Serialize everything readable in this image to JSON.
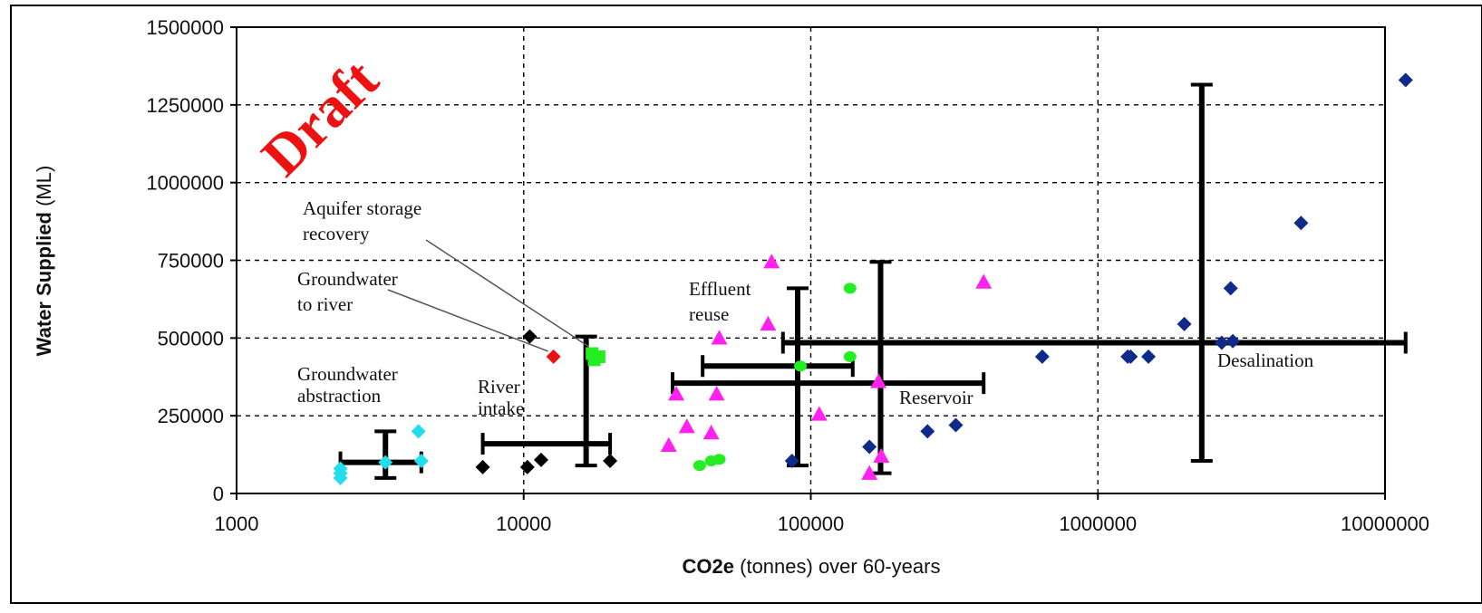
{
  "chart_data": {
    "type": "scatter",
    "title": "",
    "xlabel_bold": "CO2e",
    "xlabel_rest": " (tonnes) over 60-years",
    "ylabel_bold": "Water Supplied",
    "ylabel_rest": " (ML)",
    "x_scale": "log",
    "xlim": [
      1000,
      10000000
    ],
    "ylim": [
      0,
      1500000
    ],
    "x_ticks": [
      1000,
      10000,
      100000,
      1000000,
      10000000
    ],
    "x_tick_labels": [
      "1000",
      "10000",
      "100000",
      "1000000",
      "10000000"
    ],
    "y_ticks": [
      0,
      250000,
      500000,
      750000,
      1000000,
      1250000,
      1500000
    ],
    "y_tick_labels": [
      "0",
      "250000",
      "500000",
      "750000",
      "1000000",
      "1250000",
      "1500000"
    ],
    "grid": "dashed",
    "watermark": "Draft",
    "annotations": [
      {
        "text_lines": [
          "Groundwater",
          "abstraction"
        ]
      },
      {
        "text_lines": [
          "River",
          "intake"
        ]
      },
      {
        "text_lines": [
          "Groundwater",
          "to river"
        ]
      },
      {
        "text_lines": [
          "Aquifer storage",
          "recovery"
        ]
      },
      {
        "text_lines": [
          "Effluent",
          "reuse"
        ]
      },
      {
        "text_lines": [
          "Reservoir"
        ]
      },
      {
        "text_lines": [
          "Desalination"
        ]
      }
    ],
    "series": [
      {
        "key": "groundwater-abstraction",
        "marker": "diamond",
        "color": "#22ddee",
        "points": [
          [
            2300,
            50000
          ],
          [
            2300,
            65000
          ],
          [
            2300,
            80000
          ],
          [
            3300,
            100000
          ],
          [
            4300,
            200000
          ],
          [
            4400,
            105000
          ]
        ]
      },
      {
        "key": "river-intake",
        "marker": "diamond",
        "color": "#000000",
        "points": [
          [
            7200,
            85000
          ],
          [
            10300,
            85000
          ],
          [
            11500,
            108000
          ],
          [
            20000,
            105000
          ],
          [
            10500,
            505000
          ]
        ]
      },
      {
        "key": "groundwater-to-river",
        "marker": "diamond",
        "color": "#ee1111",
        "points": [
          [
            12700,
            440000
          ]
        ]
      },
      {
        "key": "aquifer-storage-recovery",
        "marker": "square",
        "color": "#22ee22",
        "points": [
          [
            17300,
            450000
          ],
          [
            18300,
            440000
          ],
          [
            17600,
            430000
          ]
        ]
      },
      {
        "key": "effluent-reuse",
        "marker": "circle",
        "color": "#22ee22",
        "points": [
          [
            41000,
            90000
          ],
          [
            45000,
            105000
          ],
          [
            48000,
            110000
          ],
          [
            92000,
            410000
          ],
          [
            137000,
            660000
          ],
          [
            137000,
            440000
          ]
        ]
      },
      {
        "key": "reservoir",
        "marker": "triangle",
        "color": "#ff22ee",
        "points": [
          [
            32000,
            155000
          ],
          [
            34000,
            320000
          ],
          [
            37000,
            215000
          ],
          [
            45000,
            195000
          ],
          [
            47000,
            320000
          ],
          [
            48000,
            500000
          ],
          [
            71000,
            545000
          ],
          [
            73000,
            745000
          ],
          [
            107000,
            255000
          ],
          [
            160000,
            65000
          ],
          [
            172000,
            360000
          ],
          [
            176000,
            120000
          ],
          [
            400000,
            680000
          ]
        ]
      },
      {
        "key": "desalination",
        "marker": "diamond",
        "color": "#102a8a",
        "points": [
          [
            86000,
            105000
          ],
          [
            160000,
            150000
          ],
          [
            255000,
            200000
          ],
          [
            320000,
            220000
          ],
          [
            640000,
            440000
          ],
          [
            1270000,
            440000
          ],
          [
            1300000,
            440000
          ],
          [
            1500000,
            440000
          ],
          [
            2000000,
            545000
          ],
          [
            2700000,
            485000
          ],
          [
            2900000,
            660000
          ],
          [
            2950000,
            490000
          ],
          [
            5100000,
            870000
          ],
          [
            11800000,
            1330000
          ]
        ]
      }
    ],
    "error_bars": [
      {
        "key": "groundwater-abstraction",
        "center": [
          3300,
          100000
        ],
        "x_range": [
          2300,
          4400
        ],
        "y_range": [
          50000,
          200000
        ]
      },
      {
        "key": "river-intake",
        "center": [
          16500,
          160000
        ],
        "x_range": [
          7200,
          20000
        ],
        "y_range": [
          90000,
          505000
        ]
      },
      {
        "key": "effluent-reuse",
        "center": [
          90000,
          410000
        ],
        "x_range": [
          42000,
          140000
        ],
        "y_range": [
          90000,
          660000
        ]
      },
      {
        "key": "reservoir",
        "center": [
          175000,
          355000
        ],
        "x_range": [
          33000,
          400000
        ],
        "y_range": [
          65000,
          745000
        ]
      },
      {
        "key": "desalination",
        "center": [
          2300000,
          485000
        ],
        "x_range": [
          80000,
          11800000
        ],
        "y_range": [
          105000,
          1315000
        ]
      }
    ]
  }
}
